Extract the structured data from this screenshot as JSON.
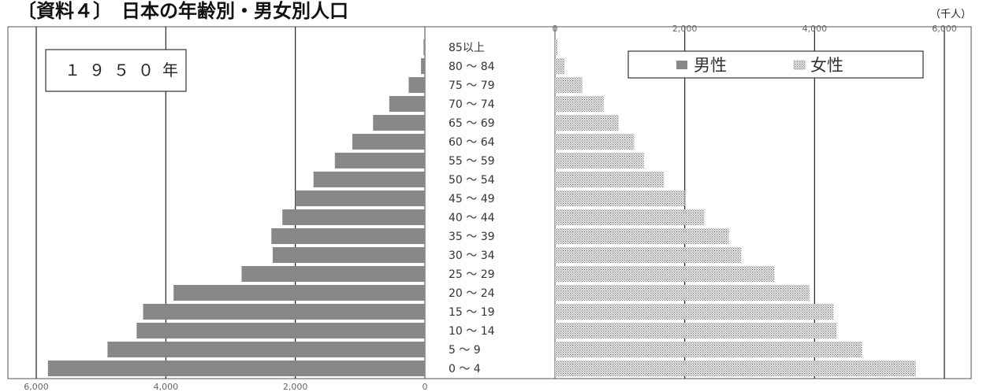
{
  "heading": "〔資料４〕　日本の年齢別・男女別人口",
  "chart_data": {
    "type": "bar",
    "subtype": "population-pyramid",
    "title": "日本の年齢別・男女別人口",
    "year_label": "１９５０年",
    "unit": "（千人）",
    "categories": [
      "85以上",
      "80 ～ 84",
      "75 ～ 79",
      "70 ～ 74",
      "65 ～ 69",
      "60 ～ 64",
      "55 ～ 59",
      "50 ～ 54",
      "45 ～ 49",
      "40 ～ 44",
      "35 ～ 39",
      "30 ～ 34",
      "25 ～ 29",
      "20 ～ 24",
      "15 ～ 19",
      "10 ～ 14",
      "5 ～ 9",
      "0 ～ 4"
    ],
    "series": [
      {
        "name": "男性",
        "side": "left",
        "color": "#888888",
        "values": [
          20,
          60,
          250,
          550,
          800,
          1120,
          1390,
          1720,
          2000,
          2200,
          2370,
          2350,
          2830,
          3880,
          4350,
          4450,
          4900,
          5820
        ]
      },
      {
        "name": "女性",
        "side": "right",
        "pattern": "dotted",
        "color": "#9a9a9a",
        "values": [
          40,
          150,
          420,
          750,
          980,
          1220,
          1370,
          1680,
          2000,
          2300,
          2680,
          2870,
          3380,
          3920,
          4290,
          4340,
          4730,
          5560
        ]
      }
    ],
    "left_ticks": [
      "6,000",
      "4,000",
      "2,000",
      "0"
    ],
    "right_ticks": [
      "0",
      "2,000",
      "4,000",
      "6,000"
    ],
    "xlim": [
      0,
      6000
    ],
    "grid": true,
    "legend_position": "top-right"
  }
}
